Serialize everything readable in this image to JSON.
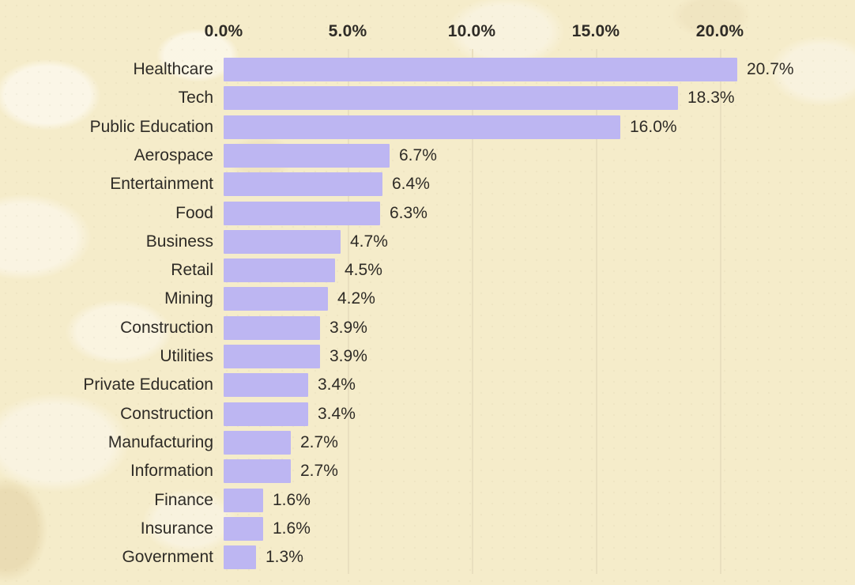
{
  "chart_data": {
    "type": "bar",
    "orientation": "horizontal",
    "title": "",
    "xlabel": "",
    "ylabel": "",
    "categories": [
      "Healthcare",
      "Tech",
      "Public Education",
      "Aerospace",
      "Entertainment",
      "Food",
      "Business",
      "Retail",
      "Mining",
      "Construction",
      "Utilities",
      "Private Education",
      "Construction",
      "Manufacturing",
      "Information",
      "Finance",
      "Insurance",
      "Government"
    ],
    "values": [
      20.7,
      18.3,
      16.0,
      6.7,
      6.4,
      6.3,
      4.7,
      4.5,
      4.2,
      3.9,
      3.9,
      3.4,
      3.4,
      2.7,
      2.7,
      1.6,
      1.6,
      1.3
    ],
    "value_labels": [
      "20.7%",
      "18.3%",
      "16.0%",
      "6.7%",
      "6.4%",
      "6.3%",
      "4.7%",
      "4.5%",
      "4.2%",
      "3.9%",
      "3.9%",
      "3.4%",
      "3.4%",
      "2.7%",
      "2.7%",
      "1.6%",
      "1.6%",
      "1.3%"
    ],
    "x_axis": {
      "position": "top",
      "tick_values": [
        0,
        5,
        10,
        15,
        20
      ],
      "tick_labels": [
        "0.0%",
        "5.0%",
        "10.0%",
        "15.0%",
        "20.0%"
      ],
      "range": [
        0,
        25
      ]
    },
    "grid": true,
    "legend": false
  },
  "colors": {
    "background": "#f5ecca",
    "bar": "#bdb6f2",
    "text": "#2e2b26",
    "gridline": "#e9dfbf"
  }
}
